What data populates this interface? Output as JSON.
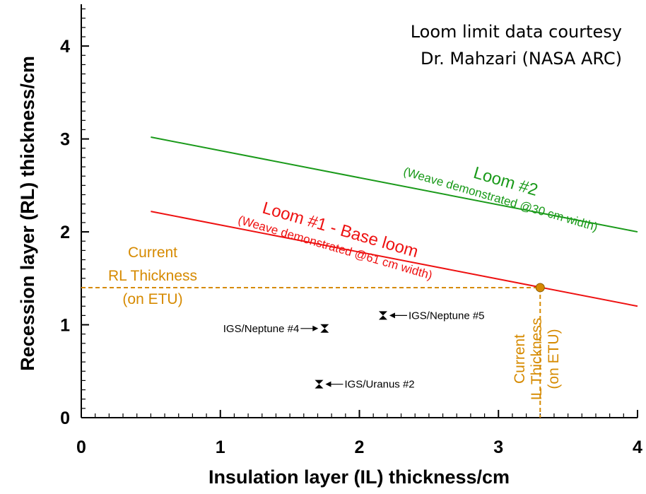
{
  "chart_data": {
    "type": "line",
    "title": "",
    "xlabel": "Insulation layer (IL) thickness/cm",
    "ylabel": "Recession layer (RL) thickness/cm",
    "xlim": [
      0,
      4
    ],
    "ylim": [
      0,
      4.45
    ],
    "x_ticks": [
      "0",
      "1",
      "2",
      "3",
      "4"
    ],
    "y_ticks": [
      "0",
      "1",
      "2",
      "3",
      "4"
    ],
    "grid": false,
    "series": [
      {
        "name": "Loom #2",
        "sublabel": "(Weave demonstrated @30 cm width)",
        "color": "#1a9a1a",
        "x": [
          0.5,
          4.0
        ],
        "y": [
          3.02,
          2.0
        ]
      },
      {
        "name": "Loom #1 - Base loom",
        "sublabel": "(Weave demonstrated @61 cm width)",
        "color": "#ee1111",
        "x": [
          0.5,
          4.0
        ],
        "y": [
          2.22,
          1.2
        ]
      }
    ],
    "current_point": {
      "x": 3.3,
      "y": 1.4,
      "color": "#d68a00",
      "rl_label": [
        "Current",
        "RL Thickness",
        "(on ETU)"
      ],
      "il_label": [
        "Current",
        "IL Thickness",
        "(on ETU)"
      ]
    },
    "missions": [
      {
        "label": "IGS/Neptune #5",
        "x": 2.17,
        "y": 1.1,
        "label_side": "right"
      },
      {
        "label": "IGS/Neptune #4",
        "x": 1.75,
        "y": 0.96,
        "label_side": "left"
      },
      {
        "label": "IGS/Uranus #2",
        "x": 1.71,
        "y": 0.36,
        "label_side": "right"
      }
    ],
    "annotation": [
      "Loom limit data courtesy",
      "Dr. Mahzari (NASA ARC)"
    ]
  }
}
